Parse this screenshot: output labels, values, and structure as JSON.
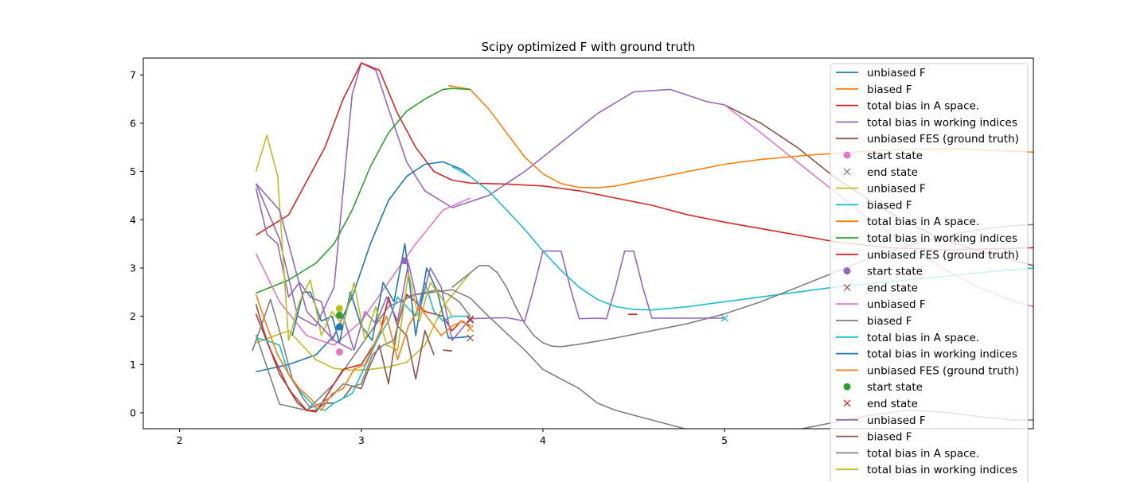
{
  "chart_data": {
    "type": "line",
    "title": "Scipy optimized F with ground truth",
    "xlabel": "",
    "ylabel": "",
    "xlim": [
      1.8,
      6.7
    ],
    "ylim": [
      -0.33,
      7.35
    ],
    "xticks": [
      2,
      3,
      4,
      5
    ],
    "yticks": [
      0,
      1,
      2,
      3,
      4,
      5,
      6,
      7
    ],
    "grid": false,
    "legend_position": "top-right",
    "colors": {
      "blue": "#1f77b4",
      "orange": "#ff7f0e",
      "green": "#2ca02c",
      "red": "#d62728",
      "purple": "#9467bd",
      "brown": "#8c564b",
      "pink": "#e377c2",
      "gray": "#7f7f7f",
      "olive": "#bcbd22",
      "cyan": "#17becf"
    },
    "legend": [
      {
        "label": "unbiased F",
        "marker": "line",
        "color": "#1f77b4"
      },
      {
        "label": "biased F",
        "marker": "line",
        "color": "#ff7f0e"
      },
      {
        "label": "total bias in A space.",
        "marker": "line",
        "color": "#d62728"
      },
      {
        "label": "total bias in working indices",
        "marker": "line",
        "color": "#9467bd"
      },
      {
        "label": "unbiased FES (ground truth)",
        "marker": "line",
        "color": "#8c564b"
      },
      {
        "label": "start state",
        "marker": "dot",
        "color": "#e377c2"
      },
      {
        "label": "end state",
        "marker": "x",
        "color": "#7f7f7f"
      },
      {
        "label": "unbiased F",
        "marker": "line",
        "color": "#bcbd22"
      },
      {
        "label": "biased F",
        "marker": "line",
        "color": "#17becf"
      },
      {
        "label": "total bias in A space.",
        "marker": "line",
        "color": "#ff7f0e"
      },
      {
        "label": "total bias in working indices",
        "marker": "line",
        "color": "#2ca02c"
      },
      {
        "label": "unbiased FES (ground truth)",
        "marker": "line",
        "color": "#d62728"
      },
      {
        "label": "start state",
        "marker": "dot",
        "color": "#9467bd"
      },
      {
        "label": "end state",
        "marker": "x",
        "color": "#8c564b"
      },
      {
        "label": "unbiased F",
        "marker": "line",
        "color": "#e377c2"
      },
      {
        "label": "biased F",
        "marker": "line",
        "color": "#7f7f7f"
      },
      {
        "label": "total bias in A space.",
        "marker": "line",
        "color": "#17becf"
      },
      {
        "label": "total bias in working indices",
        "marker": "line",
        "color": "#1f77b4"
      },
      {
        "label": "unbiased FES (ground truth)",
        "marker": "line",
        "color": "#ff7f0e"
      },
      {
        "label": "start state",
        "marker": "dot",
        "color": "#2ca02c"
      },
      {
        "label": "end state",
        "marker": "x",
        "color": "#d62728"
      },
      {
        "label": "unbiased F",
        "marker": "line",
        "color": "#9467bd"
      },
      {
        "label": "biased F",
        "marker": "line",
        "color": "#8c564b"
      },
      {
        "label": "total bias in A space.",
        "marker": "line",
        "color": "#7f7f7f"
      },
      {
        "label": "total bias in working indices",
        "marker": "line",
        "color": "#bcbd22"
      }
    ],
    "series": [
      {
        "color": "#9467bd",
        "x": [
          2.42,
          2.55,
          2.65,
          2.75,
          2.85,
          2.95,
          3.0,
          3.08,
          3.15,
          3.25,
          3.35,
          3.5,
          3.7,
          3.9,
          4.1,
          4.3,
          4.5,
          4.7,
          4.9,
          5.0
        ],
        "y": [
          4.75,
          3.6,
          2.0,
          1.8,
          2.6,
          6.6,
          7.25,
          7.1,
          6.3,
          5.2,
          4.6,
          4.25,
          4.5,
          5.0,
          5.6,
          6.2,
          6.65,
          6.7,
          6.45,
          6.38
        ]
      },
      {
        "color": "#8c564b",
        "x": [
          5.0,
          5.2,
          5.4,
          5.6,
          5.8,
          6.0,
          6.2,
          6.4,
          6.6,
          6.7
        ],
        "y": [
          6.38,
          6.0,
          5.5,
          4.9,
          4.4,
          3.95,
          3.6,
          3.35,
          3.15,
          3.05
        ]
      },
      {
        "color": "#e377c2",
        "x": [
          5.0,
          5.2,
          5.4,
          5.6,
          5.8,
          6.0,
          6.2,
          6.4,
          6.6,
          6.7
        ],
        "y": [
          6.38,
          5.8,
          5.2,
          4.6,
          4.0,
          3.5,
          3.0,
          2.6,
          2.3,
          2.2
        ]
      },
      {
        "color": "#ff7f0e",
        "x": [
          3.48,
          3.6,
          3.7,
          3.8,
          3.9,
          4.0,
          4.1,
          4.2,
          4.3,
          4.4,
          4.6,
          4.8,
          5.0,
          5.2,
          5.5,
          5.8,
          6.0,
          6.3,
          6.7
        ],
        "y": [
          6.78,
          6.7,
          6.3,
          5.8,
          5.3,
          4.95,
          4.75,
          4.67,
          4.66,
          4.7,
          4.85,
          5.0,
          5.15,
          5.25,
          5.35,
          5.42,
          5.46,
          5.47,
          5.4
        ]
      },
      {
        "color": "#d62728",
        "x": [
          2.42,
          2.6,
          2.8,
          2.9,
          3.0,
          3.1,
          3.2,
          3.3,
          3.4,
          3.5,
          3.6,
          3.8,
          4.0,
          4.2,
          4.4,
          4.6,
          4.8,
          5.0,
          5.3,
          5.6,
          5.9,
          6.2,
          6.5,
          6.7
        ],
        "y": [
          3.68,
          4.1,
          5.5,
          6.5,
          7.25,
          7.1,
          6.2,
          5.5,
          5.0,
          4.82,
          4.76,
          4.74,
          4.7,
          4.6,
          4.45,
          4.3,
          4.1,
          3.95,
          3.75,
          3.55,
          3.42,
          3.38,
          3.4,
          3.42
        ]
      },
      {
        "color": "#2ca02c",
        "x": [
          2.42,
          2.6,
          2.75,
          2.85,
          2.95,
          3.05,
          3.15,
          3.25,
          3.35,
          3.45,
          3.5,
          3.6
        ],
        "y": [
          2.48,
          2.75,
          3.1,
          3.5,
          4.2,
          5.1,
          5.8,
          6.25,
          6.5,
          6.7,
          6.72,
          6.7
        ]
      },
      {
        "color": "#1f77b4",
        "x": [
          2.42,
          2.6,
          2.75,
          2.85,
          2.95,
          3.05,
          3.15,
          3.25,
          3.35,
          3.45,
          3.55,
          3.6
        ],
        "y": [
          0.85,
          1.0,
          1.2,
          1.6,
          2.4,
          3.5,
          4.4,
          4.9,
          5.15,
          5.2,
          5.05,
          4.9
        ]
      },
      {
        "color": "#17becf",
        "x": [
          3.5,
          3.6,
          3.7,
          3.8,
          3.9,
          4.0,
          4.1,
          4.2,
          4.3,
          4.4,
          4.5,
          4.6,
          4.8,
          5.0,
          5.3,
          5.6,
          6.0,
          6.4,
          6.7
        ],
        "y": [
          5.1,
          4.9,
          4.6,
          4.2,
          3.8,
          3.35,
          2.95,
          2.6,
          2.35,
          2.2,
          2.14,
          2.13,
          2.2,
          2.3,
          2.45,
          2.6,
          2.75,
          2.9,
          3.0
        ]
      },
      {
        "color": "#e377c2",
        "x": [
          2.42,
          2.55,
          2.7,
          2.85,
          3.0,
          3.15,
          3.3,
          3.45,
          3.6
        ],
        "y": [
          3.3,
          2.3,
          1.6,
          1.4,
          1.9,
          2.7,
          3.5,
          4.2,
          4.45
        ]
      },
      {
        "color": "#bcbd22",
        "x": [
          2.42,
          2.6,
          2.75,
          2.85,
          2.95,
          3.05,
          3.15,
          3.25,
          3.35,
          3.45,
          3.6
        ],
        "y": [
          1.45,
          1.7,
          1.1,
          0.92,
          0.88,
          0.9,
          0.95,
          1.05,
          1.4,
          2.2,
          2.9
        ]
      },
      {
        "color": "#7f7f7f",
        "x": [
          3.5,
          3.6,
          3.65,
          3.7,
          3.75,
          3.8,
          3.85,
          3.9,
          3.95,
          4.0,
          4.05,
          4.1,
          4.2,
          4.4,
          4.6,
          4.8,
          5.0,
          5.2,
          5.4,
          5.6,
          5.8,
          6.0,
          6.2,
          6.4,
          6.6,
          6.7
        ],
        "y": [
          2.6,
          2.9,
          3.05,
          3.05,
          2.9,
          2.6,
          2.2,
          1.85,
          1.6,
          1.45,
          1.38,
          1.37,
          1.42,
          1.55,
          1.7,
          1.85,
          2.05,
          2.3,
          2.6,
          2.9,
          3.2,
          3.45,
          3.65,
          3.8,
          3.88,
          3.9
        ]
      },
      {
        "color": "#7f7f7f",
        "x": [
          2.42,
          2.55,
          2.7,
          2.85,
          3.0,
          3.15,
          3.3,
          3.5,
          3.6,
          3.7,
          3.8,
          3.9,
          4.0,
          4.1,
          4.2,
          4.3,
          4.4,
          4.5,
          4.6,
          4.7,
          4.8,
          5.0,
          5.2,
          5.4,
          5.6,
          5.8,
          6.0,
          6.2,
          6.4,
          6.6,
          6.7
        ],
        "y": [
          1.62,
          0.18,
          0.05,
          0.6,
          1.4,
          2.2,
          2.45,
          2.55,
          2.38,
          2.0,
          1.65,
          1.3,
          0.9,
          0.7,
          0.5,
          0.2,
          0.05,
          -0.05,
          -0.15,
          -0.25,
          -0.35,
          -0.45,
          -0.45,
          -0.35,
          -0.2,
          -0.05,
          0.05,
          0.02,
          -0.08,
          -0.15,
          -0.15
        ]
      },
      {
        "color": "#8c564b",
        "x": [
          2.42,
          2.48,
          2.55,
          2.62,
          2.7,
          2.75,
          2.8,
          2.85,
          2.9,
          2.95,
          3.0,
          3.05,
          3.1,
          3.15,
          3.2,
          3.25,
          3.3,
          3.35,
          3.4
        ],
        "y": [
          2.25,
          1.5,
          0.8,
          0.4,
          0.05,
          0.05,
          0.2,
          0.2,
          0.3,
          0.55,
          0.5,
          1.0,
          1.4,
          0.6,
          1.8,
          1.6,
          0.7,
          1.7,
          1.2
        ]
      },
      {
        "color": "#d62728",
        "x": [
          2.42,
          2.5,
          2.55,
          2.6,
          2.65,
          2.7,
          2.75,
          2.8,
          2.85,
          2.9,
          2.95,
          3.0,
          3.05,
          3.1,
          3.15,
          3.2,
          3.25,
          3.3,
          3.35,
          3.4,
          3.45,
          3.5,
          3.55,
          3.6
        ],
        "y": [
          2.05,
          1.3,
          0.9,
          0.5,
          0.2,
          0.05,
          0.02,
          0.3,
          0.6,
          0.9,
          0.95,
          1.0,
          1.3,
          1.6,
          2.4,
          1.8,
          2.45,
          2.3,
          2.1,
          2.05,
          2.0,
          1.7,
          1.9,
          1.8
        ]
      },
      {
        "color": "#17becf",
        "x": [
          2.42,
          2.48,
          2.55,
          2.6,
          2.65,
          2.7,
          2.75,
          2.8,
          2.85,
          2.9,
          2.95,
          3.0,
          3.05,
          3.1,
          3.15,
          3.2,
          3.25,
          3.3,
          3.35,
          3.4,
          3.45,
          3.5,
          3.6
        ],
        "y": [
          1.55,
          1.5,
          1.4,
          0.8,
          0.5,
          0.3,
          0.1,
          0.05,
          0.2,
          0.3,
          0.4,
          0.8,
          1.2,
          1.6,
          1.9,
          2.4,
          2.2,
          2.0,
          2.7,
          2.1,
          1.9,
          2.0,
          2.0
        ]
      },
      {
        "color": "#1f77b4",
        "x": [
          2.62,
          2.68,
          2.72,
          2.78,
          2.84,
          2.88,
          2.94,
          3.0,
          3.06,
          3.12,
          3.18,
          3.24,
          3.3,
          3.36,
          3.42,
          3.48,
          3.54,
          3.6
        ],
        "y": [
          1.6,
          2.5,
          2.5,
          1.9,
          2.0,
          1.45,
          2.5,
          1.8,
          1.5,
          2.7,
          2.3,
          3.5,
          1.6,
          3.0,
          2.5,
          1.55,
          1.56,
          1.58
        ]
      },
      {
        "color": "#9467bd",
        "x": [
          2.42,
          2.48,
          2.54,
          2.6,
          2.66,
          2.72,
          2.78,
          2.84,
          2.9,
          2.96,
          3.02,
          3.08,
          3.14,
          3.2,
          3.26,
          3.32,
          3.38,
          3.44,
          3.5,
          3.6,
          3.7,
          3.8,
          3.9,
          3.95,
          4.0,
          4.05,
          4.1,
          4.15,
          4.2,
          4.3,
          4.35,
          4.4,
          4.45,
          4.5,
          4.55,
          4.6,
          4.7,
          4.8,
          4.9,
          5.0
        ],
        "y": [
          4.65,
          3.7,
          3.5,
          2.4,
          2.7,
          2.4,
          2.3,
          1.5,
          2.0,
          1.3,
          2.1,
          1.85,
          2.4,
          1.9,
          3.1,
          2.1,
          3.0,
          2.6,
          1.5,
          1.95,
          1.96,
          1.97,
          1.9,
          2.6,
          3.35,
          3.35,
          3.35,
          2.6,
          1.95,
          1.96,
          1.95,
          2.6,
          3.35,
          3.35,
          2.6,
          1.96,
          1.96,
          1.96,
          1.96,
          1.96
        ]
      },
      {
        "color": "#7f7f7f",
        "x": [
          2.4,
          2.5,
          2.55,
          2.62,
          2.68,
          2.72,
          2.78,
          2.84,
          2.9,
          2.96,
          3.0,
          3.06,
          3.12,
          3.18,
          3.24,
          3.3,
          3.36,
          3.42,
          3.48,
          3.54,
          3.6
        ],
        "y": [
          1.28,
          2.35,
          1.7,
          0.7,
          0.3,
          0.1,
          0.2,
          0.35,
          0.6,
          0.55,
          0.6,
          1.2,
          1.4,
          1.5,
          2.4,
          2.45,
          2.5,
          2.55,
          2.45,
          2.3,
          2.0
        ]
      },
      {
        "color": "#bcbd22",
        "x": [
          2.42,
          2.48,
          2.54,
          2.6,
          2.66,
          2.72,
          2.78,
          2.84,
          2.9,
          2.96,
          3.02,
          3.08,
          3.14,
          3.2,
          3.26,
          3.32,
          3.38,
          3.44,
          3.5
        ],
        "y": [
          5.0,
          5.75,
          4.9,
          1.5,
          2.3,
          2.75,
          1.6,
          2.1,
          1.8,
          2.7,
          1.5,
          2.2,
          1.4,
          1.3,
          2.9,
          1.9,
          2.7,
          2.4,
          2.0
        ]
      },
      {
        "color": "#ff7f0e",
        "x": [
          2.42,
          2.48,
          2.54,
          2.6,
          2.66,
          2.72,
          2.78,
          2.84,
          2.9,
          2.96,
          3.02,
          3.08,
          3.14,
          3.2,
          3.26,
          3.32,
          3.38,
          3.44,
          3.5,
          3.56,
          3.6
        ],
        "y": [
          2.45,
          1.8,
          1.2,
          0.8,
          0.5,
          0.3,
          0.05,
          0.4,
          0.5,
          0.9,
          1.0,
          1.5,
          2.0,
          1.1,
          1.8,
          2.2,
          1.9,
          1.6,
          1.8,
          1.9,
          1.75
        ]
      },
      {
        "color": "#9467bd",
        "x": [
          2.42,
          2.55,
          2.7,
          2.85,
          2.95
        ],
        "y": [
          4.75,
          4.2,
          2.1,
          1.5,
          1.3
        ]
      }
    ],
    "segments": [
      {
        "color": "#d62728",
        "x": [
          4.47,
          4.52
        ],
        "y": [
          2.04,
          2.04
        ]
      },
      {
        "color": "#8c564b",
        "x": [
          3.45,
          3.5
        ],
        "y": [
          1.3,
          1.28
        ]
      }
    ],
    "points": [
      {
        "marker": "dot",
        "color": "#e377c2",
        "x": 2.88,
        "y": 1.26
      },
      {
        "marker": "dot",
        "color": "#9467bd",
        "x": 3.24,
        "y": 3.15
      },
      {
        "marker": "dot",
        "color": "#2ca02c",
        "x": 2.88,
        "y": 2.02
      },
      {
        "marker": "dot",
        "color": "#1f77b4",
        "x": 2.88,
        "y": 1.78
      },
      {
        "marker": "dot",
        "color": "#bcbd22",
        "x": 2.88,
        "y": 2.16
      },
      {
        "marker": "x",
        "color": "#7f7f7f",
        "x": 3.6,
        "y": 1.95
      },
      {
        "marker": "x",
        "color": "#8c564b",
        "x": 3.6,
        "y": 1.55
      },
      {
        "marker": "x",
        "color": "#d62728",
        "x": 3.6,
        "y": 1.92
      },
      {
        "marker": "x",
        "color": "#ff7f0e",
        "x": 3.6,
        "y": 1.75
      },
      {
        "marker": "x",
        "color": "#17becf",
        "x": 5.0,
        "y": 1.96
      }
    ]
  }
}
